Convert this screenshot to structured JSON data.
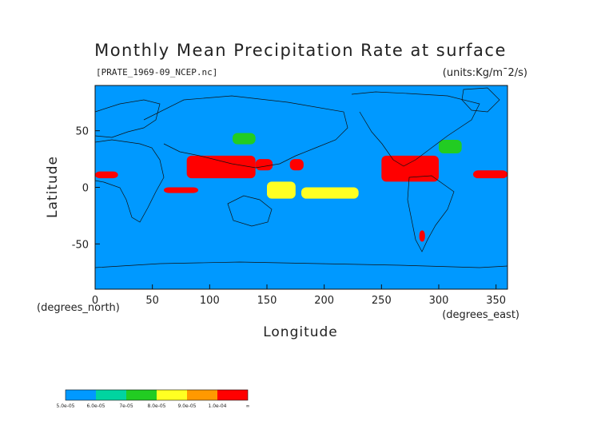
{
  "chart_data": {
    "type": "heatmap",
    "title": "Monthly Mean Precipitation Rate at surface",
    "subtitle": "[PRATE_1969-09_NCEP.nc]",
    "units_label": "(units:Kg/m¯2/s)",
    "xlabel": "Longitude",
    "ylabel": "Latitude",
    "x_unit_label": "(degrees_east)",
    "y_unit_label": "(degrees_north)",
    "xlim": [
      0,
      360
    ],
    "ylim": [
      -90,
      90
    ],
    "x_ticks": [
      0,
      50,
      100,
      150,
      200,
      250,
      300,
      350
    ],
    "y_ticks": [
      50,
      0,
      -50
    ],
    "background_color": "#0099ff",
    "colorbar": {
      "colors": [
        "#0099ff",
        "#00d4a0",
        "#22cc22",
        "#ffff22",
        "#ff9900",
        "#ff0000"
      ],
      "labels": [
        "5.0e-05",
        "6.0e-05",
        "7e-05",
        "8.0e-05",
        "9.0e-05",
        "1.0e-04",
        "∞"
      ]
    },
    "regions": [
      {
        "level": 5,
        "lon": [
          80,
          140
        ],
        "lat": [
          8,
          28
        ]
      },
      {
        "level": 5,
        "lon": [
          140,
          155
        ],
        "lat": [
          15,
          25
        ]
      },
      {
        "level": 5,
        "lon": [
          170,
          182
        ],
        "lat": [
          15,
          25
        ]
      },
      {
        "level": 5,
        "lon": [
          250,
          300
        ],
        "lat": [
          5,
          28
        ]
      },
      {
        "level": 5,
        "lon": [
          330,
          360
        ],
        "lat": [
          8,
          15
        ]
      },
      {
        "level": 5,
        "lon": [
          0,
          20
        ],
        "lat": [
          8,
          14
        ]
      },
      {
        "level": 5,
        "lon": [
          60,
          90
        ],
        "lat": [
          -5,
          0
        ]
      },
      {
        "level": 5,
        "lon": [
          283,
          288
        ],
        "lat": [
          -48,
          -38
        ]
      },
      {
        "level": 3,
        "lon": [
          150,
          175
        ],
        "lat": [
          -10,
          5
        ]
      },
      {
        "level": 3,
        "lon": [
          180,
          230
        ],
        "lat": [
          -10,
          0
        ]
      },
      {
        "level": 2,
        "lon": [
          120,
          140
        ],
        "lat": [
          38,
          48
        ]
      },
      {
        "level": 2,
        "lon": [
          300,
          320
        ],
        "lat": [
          30,
          42
        ]
      }
    ]
  }
}
